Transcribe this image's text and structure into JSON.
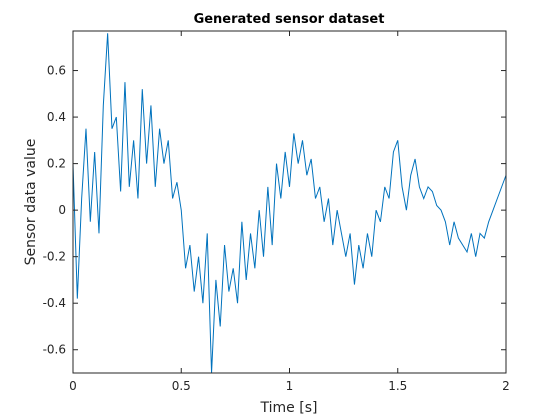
{
  "chart_data": {
    "type": "line",
    "title": "Generated sensor dataset",
    "xlabel": "Time [s]",
    "ylabel": "Sensor data value",
    "x": [
      0,
      0.02,
      0.04,
      0.06,
      0.08,
      0.1,
      0.12,
      0.14,
      0.16,
      0.18,
      0.2,
      0.22,
      0.24,
      0.26,
      0.28,
      0.3,
      0.32,
      0.34,
      0.36,
      0.38,
      0.4,
      0.42,
      0.44,
      0.46,
      0.48,
      0.5,
      0.52,
      0.54,
      0.56,
      0.58,
      0.6,
      0.62,
      0.64,
      0.66,
      0.68,
      0.7,
      0.72,
      0.74,
      0.76,
      0.78,
      0.8,
      0.82,
      0.84,
      0.86,
      0.88,
      0.9,
      0.92,
      0.94,
      0.96,
      0.98,
      1,
      1.02,
      1.04,
      1.06,
      1.08,
      1.1,
      1.12,
      1.14,
      1.16,
      1.18,
      1.2,
      1.22,
      1.24,
      1.26,
      1.28,
      1.3,
      1.32,
      1.34,
      1.36,
      1.38,
      1.4,
      1.42,
      1.44,
      1.46,
      1.48,
      1.5,
      1.52,
      1.54,
      1.56,
      1.58,
      1.6,
      1.62,
      1.64,
      1.66,
      1.68,
      1.7,
      1.72,
      1.74,
      1.76,
      1.78,
      1.8,
      1.82,
      1.84,
      1.86,
      1.88,
      1.9,
      1.92,
      1.94,
      1.96,
      1.98,
      2
    ],
    "series": [
      {
        "color": "#0072bd",
        "values": [
          0.2,
          -0.38,
          0.05,
          0.35,
          -0.05,
          0.25,
          -0.1,
          0.45,
          0.76,
          0.35,
          0.4,
          0.08,
          0.55,
          0.1,
          0.3,
          0.05,
          0.52,
          0.2,
          0.45,
          0.1,
          0.35,
          0.2,
          0.3,
          0.05,
          0.12,
          0.0,
          -0.25,
          -0.15,
          -0.35,
          -0.2,
          -0.4,
          -0.1,
          -0.7,
          -0.3,
          -0.5,
          -0.15,
          -0.35,
          -0.25,
          -0.4,
          -0.05,
          -0.3,
          -0.1,
          -0.25,
          0.0,
          -0.2,
          0.1,
          -0.15,
          0.2,
          0.05,
          0.25,
          0.1,
          0.33,
          0.2,
          0.3,
          0.15,
          0.22,
          0.05,
          0.1,
          -0.05,
          0.05,
          -0.15,
          0.0,
          -0.1,
          -0.2,
          -0.1,
          -0.32,
          -0.15,
          -0.25,
          -0.1,
          -0.2,
          0.0,
          -0.05,
          0.1,
          0.05,
          0.25,
          0.3,
          0.1,
          0.0,
          0.15,
          0.22,
          0.1,
          0.05,
          0.1,
          0.08,
          0.02,
          0.0,
          -0.05,
          -0.15,
          -0.05,
          -0.12,
          -0.15,
          -0.18,
          -0.1,
          -0.2,
          -0.1,
          -0.12,
          -0.05,
          0.0,
          0.05,
          0.1,
          0.15
        ]
      }
    ],
    "xlim": [
      0,
      2
    ],
    "xticks": [
      0,
      0.5,
      1,
      1.5,
      2
    ],
    "ylim": [
      -0.7,
      0.77
    ],
    "yticks": [
      -0.6,
      -0.4,
      -0.2,
      0,
      0.2,
      0.4,
      0.6
    ]
  }
}
